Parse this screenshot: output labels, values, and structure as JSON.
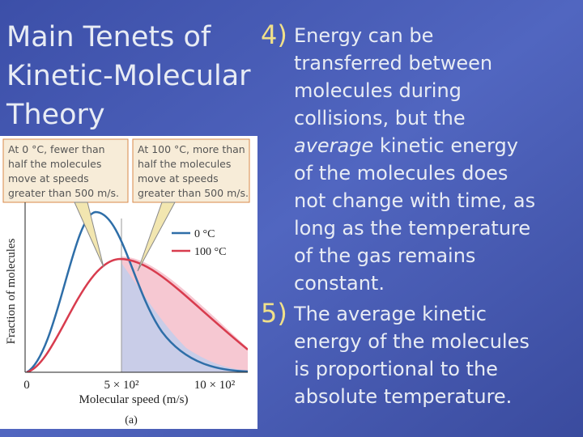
{
  "title": [
    "Main Tenets of",
    "Kinetic-Molecular",
    "Theory"
  ],
  "items": [
    {
      "number": "4)",
      "lines": [
        "Energy can be",
        "transferred between",
        "molecules during",
        "collisions, but the",
        {
          "em": "average",
          "rest": " kinetic energy"
        },
        "of the molecules does",
        "not change with time, as",
        "long as the temperature",
        "of the gas remains",
        "constant."
      ]
    },
    {
      "number": "5)",
      "lines": [
        "The average kinetic",
        "energy of the molecules",
        "is proportional to the",
        "absolute temperature."
      ]
    }
  ],
  "figure": {
    "callouts": [
      [
        "At 0 °C, fewer than",
        "half the molecules",
        "move at speeds",
        "greater than 500 m/s."
      ],
      [
        "At 100 °C, more than",
        "half the molecules",
        "move at speeds",
        "greater than 500 m/s."
      ]
    ],
    "legend": [
      "0 °C",
      "100 °C"
    ],
    "x_ticks": [
      "0",
      "5 × 10²",
      "10 × 10²"
    ],
    "x_label": "Molecular speed (m/s)",
    "y_label": "Fraction of molecules",
    "caption": "(a)"
  }
}
